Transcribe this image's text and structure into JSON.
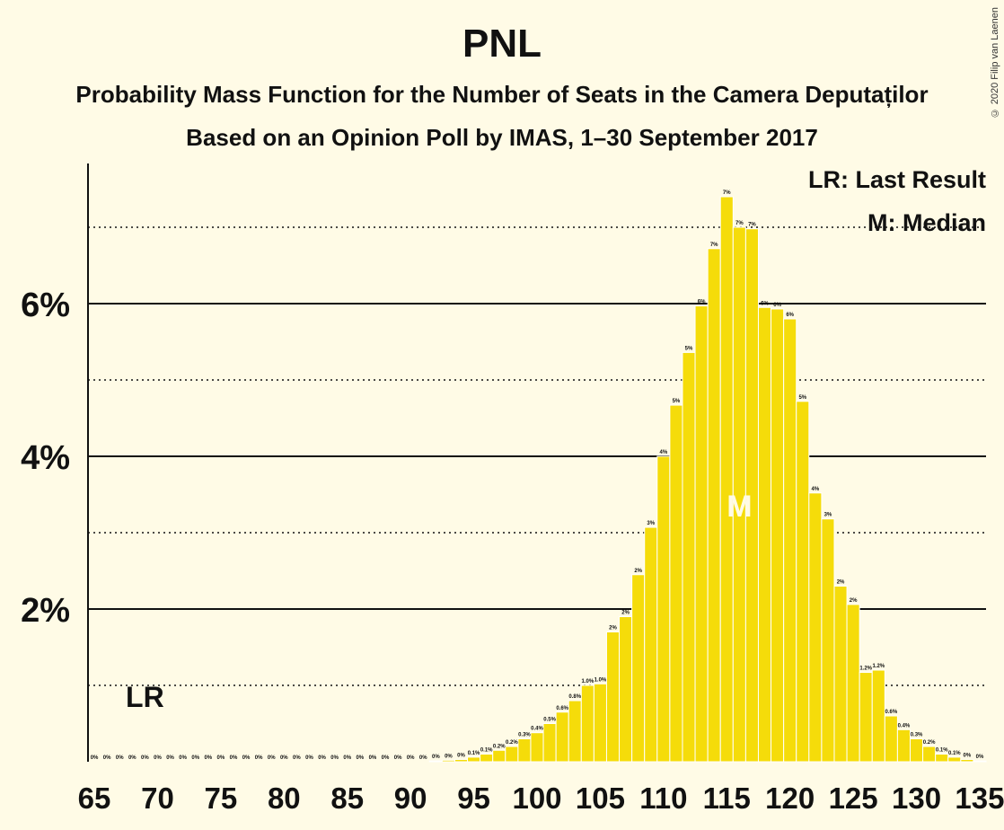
{
  "title": "PNL",
  "subtitle_line1": "Probability Mass Function for the Number of Seats in the Camera Deputaților",
  "subtitle_line2": "Based on an Opinion Poll by IMAS, 1–30 September 2017",
  "copyright": "© 2020 Filip van Laenen",
  "legend": {
    "last_result": "LR: Last Result",
    "median": "M: Median"
  },
  "colors": {
    "background": "#FFFBE6",
    "bar": "#F5DC0A",
    "bar_edge": "#ffffff",
    "text": "#111111",
    "median_label": "#FFFBE6"
  },
  "chart_data": {
    "type": "bar",
    "x": [
      65,
      66,
      67,
      68,
      69,
      70,
      71,
      72,
      73,
      74,
      75,
      76,
      77,
      78,
      79,
      80,
      81,
      82,
      83,
      84,
      85,
      86,
      87,
      88,
      89,
      90,
      91,
      92,
      93,
      94,
      95,
      96,
      97,
      98,
      99,
      100,
      101,
      102,
      103,
      104,
      105,
      106,
      107,
      108,
      109,
      110,
      111,
      112,
      113,
      114,
      115,
      116,
      117,
      118,
      119,
      120,
      121,
      122,
      123,
      124,
      125,
      126,
      127,
      128,
      129,
      130,
      131,
      132,
      133,
      134,
      135
    ],
    "values": [
      0,
      0,
      0,
      0,
      0,
      0,
      0,
      0,
      0,
      0,
      0,
      0,
      0,
      0,
      0,
      0,
      0,
      0,
      0,
      0,
      0,
      0,
      0,
      0,
      0,
      0,
      0,
      0.01,
      0.02,
      0.03,
      0.06,
      0.1,
      0.15,
      0.2,
      0.3,
      0.38,
      0.5,
      0.65,
      0.8,
      1.0,
      1.02,
      1.7,
      1.9,
      2.45,
      3.07,
      4.0,
      4.67,
      5.36,
      5.97,
      6.72,
      7.4,
      7.0,
      6.98,
      5.95,
      5.93,
      5.8,
      4.72,
      3.52,
      3.18,
      2.3,
      2.06,
      1.17,
      1.2,
      0.6,
      0.42,
      0.3,
      0.2,
      0.1,
      0.06,
      0.03,
      0.01
    ],
    "bar_labels": [
      "0%",
      "0%",
      "0%",
      "0%",
      "0%",
      "0%",
      "0%",
      "0%",
      "0%",
      "0%",
      "0%",
      "0%",
      "0%",
      "0%",
      "0%",
      "0%",
      "0%",
      "0%",
      "0%",
      "0%",
      "0%",
      "0%",
      "0%",
      "0%",
      "0%",
      "0%",
      "0%",
      "0%",
      "0%",
      "0%",
      "0.1%",
      "0.1%",
      "0.2%",
      "0.2%",
      "0.3%",
      "0.4%",
      "0.5%",
      "0.6%",
      "0.8%",
      "1.0%",
      "1.0%",
      "2%",
      "2%",
      "2%",
      "3%",
      "4%",
      "5%",
      "5%",
      "6%",
      "7%",
      "7%",
      "7%",
      "7%",
      "6%",
      "6%",
      "6%",
      "5%",
      "4%",
      "3%",
      "2%",
      "2%",
      "1.2%",
      "1.2%",
      "0.6%",
      "0.4%",
      "0.3%",
      "0.2%",
      "0.1%",
      "0.1%",
      "0%",
      "0%"
    ],
    "x_ticks": [
      "65",
      "70",
      "75",
      "80",
      "85",
      "90",
      "95",
      "100",
      "105",
      "110",
      "115",
      "120",
      "125",
      "130",
      "135"
    ],
    "x_tick_values": [
      65,
      70,
      75,
      80,
      85,
      90,
      95,
      100,
      105,
      110,
      115,
      120,
      125,
      130,
      135
    ],
    "y_ticks": [
      "2%",
      "4%",
      "6%"
    ],
    "y_tick_values": [
      2,
      4,
      6
    ],
    "ylim": [
      0,
      7.8
    ],
    "xlim": [
      64.5,
      135.5
    ],
    "major_gridlines": [
      2,
      4,
      6
    ],
    "minor_gridlines": [
      1,
      3,
      5,
      7
    ],
    "last_result": {
      "seat": 69,
      "label": "LR"
    },
    "median": {
      "seat": 116,
      "label": "M"
    }
  }
}
